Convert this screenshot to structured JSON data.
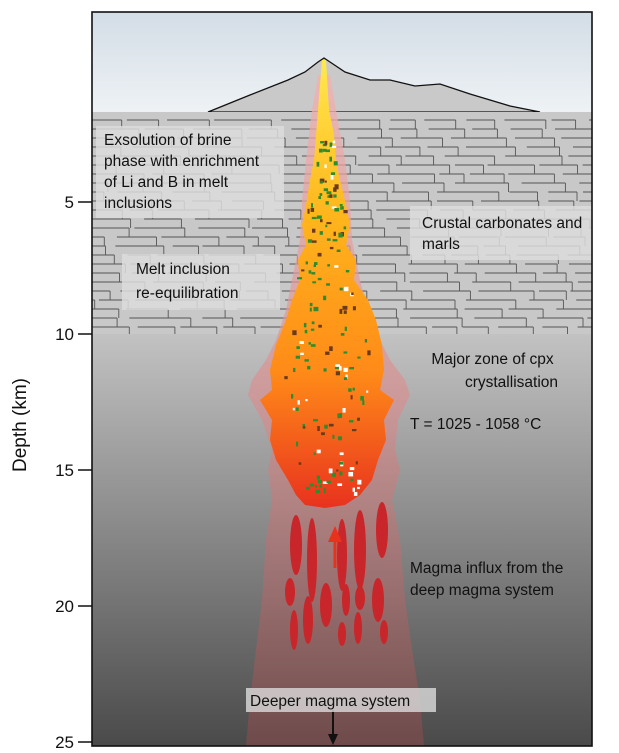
{
  "axis": {
    "title": "Depth (km)",
    "ticks": [
      "5",
      "10",
      "15",
      "20",
      "25"
    ],
    "tick_values": [
      5,
      10,
      15,
      20,
      25
    ]
  },
  "annotations": {
    "exsolution": [
      "Exsolution of brine",
      "phase with enrichment",
      "of Li and B in melt",
      "inclusions"
    ],
    "carbonates": [
      "Crustal carbonates and",
      "marls"
    ],
    "reequil": [
      "Melt inclusion",
      "re-equilibration"
    ],
    "cpx": [
      "Major zone of cpx",
      "crystallisation"
    ],
    "temperature": "T = 1025 - 1058 °C",
    "influx": [
      "Magma influx from the",
      "deep magma system"
    ],
    "deeper": "Deeper magma system"
  },
  "colors": {
    "sky": "#dde6ee",
    "sedimentary": "#c9c9c9",
    "deep_crust_top": "#b8b8b8",
    "deep_crust_bottom": "#505050",
    "melt_top": "#ffe14a",
    "melt_mid": "#ffa416",
    "melt_bottom": "#e83a22",
    "magma_blobs": "#c8262a",
    "halo": "#f0a0a0"
  }
}
